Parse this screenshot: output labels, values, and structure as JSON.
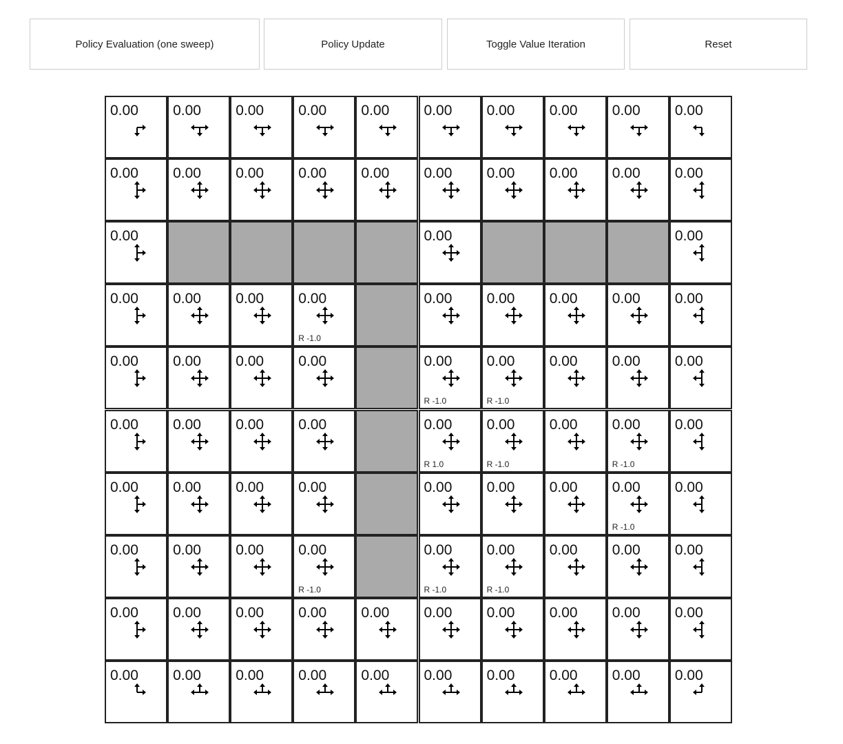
{
  "toolbar": {
    "buttons": [
      "Policy Evaluation (one sweep)",
      "Policy Update",
      "Toggle Value Iteration",
      "Reset"
    ]
  },
  "grid": {
    "rows": 10,
    "cols": 10,
    "default_value": "0.00",
    "walls": [
      [
        2,
        1
      ],
      [
        2,
        2
      ],
      [
        2,
        3
      ],
      [
        2,
        4
      ],
      [
        2,
        6
      ],
      [
        2,
        7
      ],
      [
        2,
        8
      ],
      [
        3,
        4
      ],
      [
        4,
        4
      ],
      [
        5,
        4
      ],
      [
        6,
        4
      ],
      [
        7,
        4
      ]
    ],
    "rewards": [
      {
        "row": 3,
        "col": 3,
        "label": "R -1.0"
      },
      {
        "row": 4,
        "col": 5,
        "label": "R -1.0"
      },
      {
        "row": 4,
        "col": 6,
        "label": "R -1.0"
      },
      {
        "row": 5,
        "col": 5,
        "label": "R 1.0"
      },
      {
        "row": 5,
        "col": 6,
        "label": "R -1.0"
      },
      {
        "row": 5,
        "col": 8,
        "label": "R -1.0"
      },
      {
        "row": 6,
        "col": 8,
        "label": "R -1.0"
      },
      {
        "row": 7,
        "col": 3,
        "label": "R -1.0"
      },
      {
        "row": 7,
        "col": 5,
        "label": "R -1.0"
      },
      {
        "row": 7,
        "col": 6,
        "label": "R -1.0"
      }
    ],
    "colors": {
      "wall": "#aaaaaa",
      "border": "#222222"
    }
  }
}
